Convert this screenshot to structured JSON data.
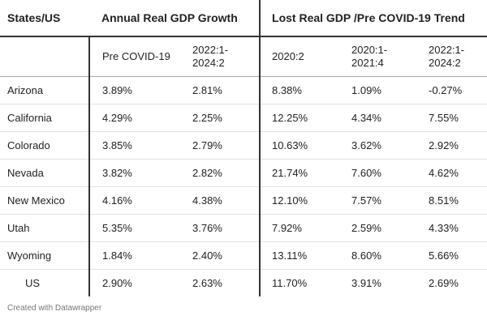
{
  "header": {
    "states_label": "States/US",
    "group_growth": "Annual Real GDP Growth",
    "group_lost": "Lost Real GDP /Pre COVID-19 Trend"
  },
  "subheaders": {
    "pre_covid": "Pre COVID-19",
    "growth_period": "2022:1-\n2024:2",
    "q2020_2": "2020:2",
    "period_2020_2021": "2020:1-\n2021:4",
    "period_2022_2024": "2022:1-\n2024:2"
  },
  "rows": [
    {
      "name": "Arizona",
      "pre_covid": "3.89%",
      "growth": "2.81%",
      "q2020_2": "8.38%",
      "p2020_2021": "1.09%",
      "p2022_2024": "-0.27%"
    },
    {
      "name": "California",
      "pre_covid": "4.29%",
      "growth": "2.25%",
      "q2020_2": "12.25%",
      "p2020_2021": "4.34%",
      "p2022_2024": "7.55%"
    },
    {
      "name": "Colorado",
      "pre_covid": "3.85%",
      "growth": "2.79%",
      "q2020_2": "10.63%",
      "p2020_2021": "3.62%",
      "p2022_2024": "2.92%"
    },
    {
      "name": "Nevada",
      "pre_covid": "3.82%",
      "growth": "2.82%",
      "q2020_2": "21.74%",
      "p2020_2021": "7.60%",
      "p2022_2024": "4.62%"
    },
    {
      "name": "New Mexico",
      "pre_covid": "4.16%",
      "growth": "4.38%",
      "q2020_2": "12.10%",
      "p2020_2021": "7.57%",
      "p2022_2024": "8.51%"
    },
    {
      "name": "Utah",
      "pre_covid": "5.35%",
      "growth": "3.76%",
      "q2020_2": "7.92%",
      "p2020_2021": "2.59%",
      "p2022_2024": "4.33%"
    },
    {
      "name": "Wyoming",
      "pre_covid": "1.84%",
      "growth": "2.40%",
      "q2020_2": "13.11%",
      "p2020_2021": "8.60%",
      "p2022_2024": "5.66%"
    },
    {
      "name": "US",
      "pre_covid": "2.90%",
      "growth": "2.63%",
      "q2020_2": "11.70%",
      "p2020_2021": "3.91%",
      "p2022_2024": "2.69%"
    }
  ],
  "footer": "Created with Datawrapper"
}
